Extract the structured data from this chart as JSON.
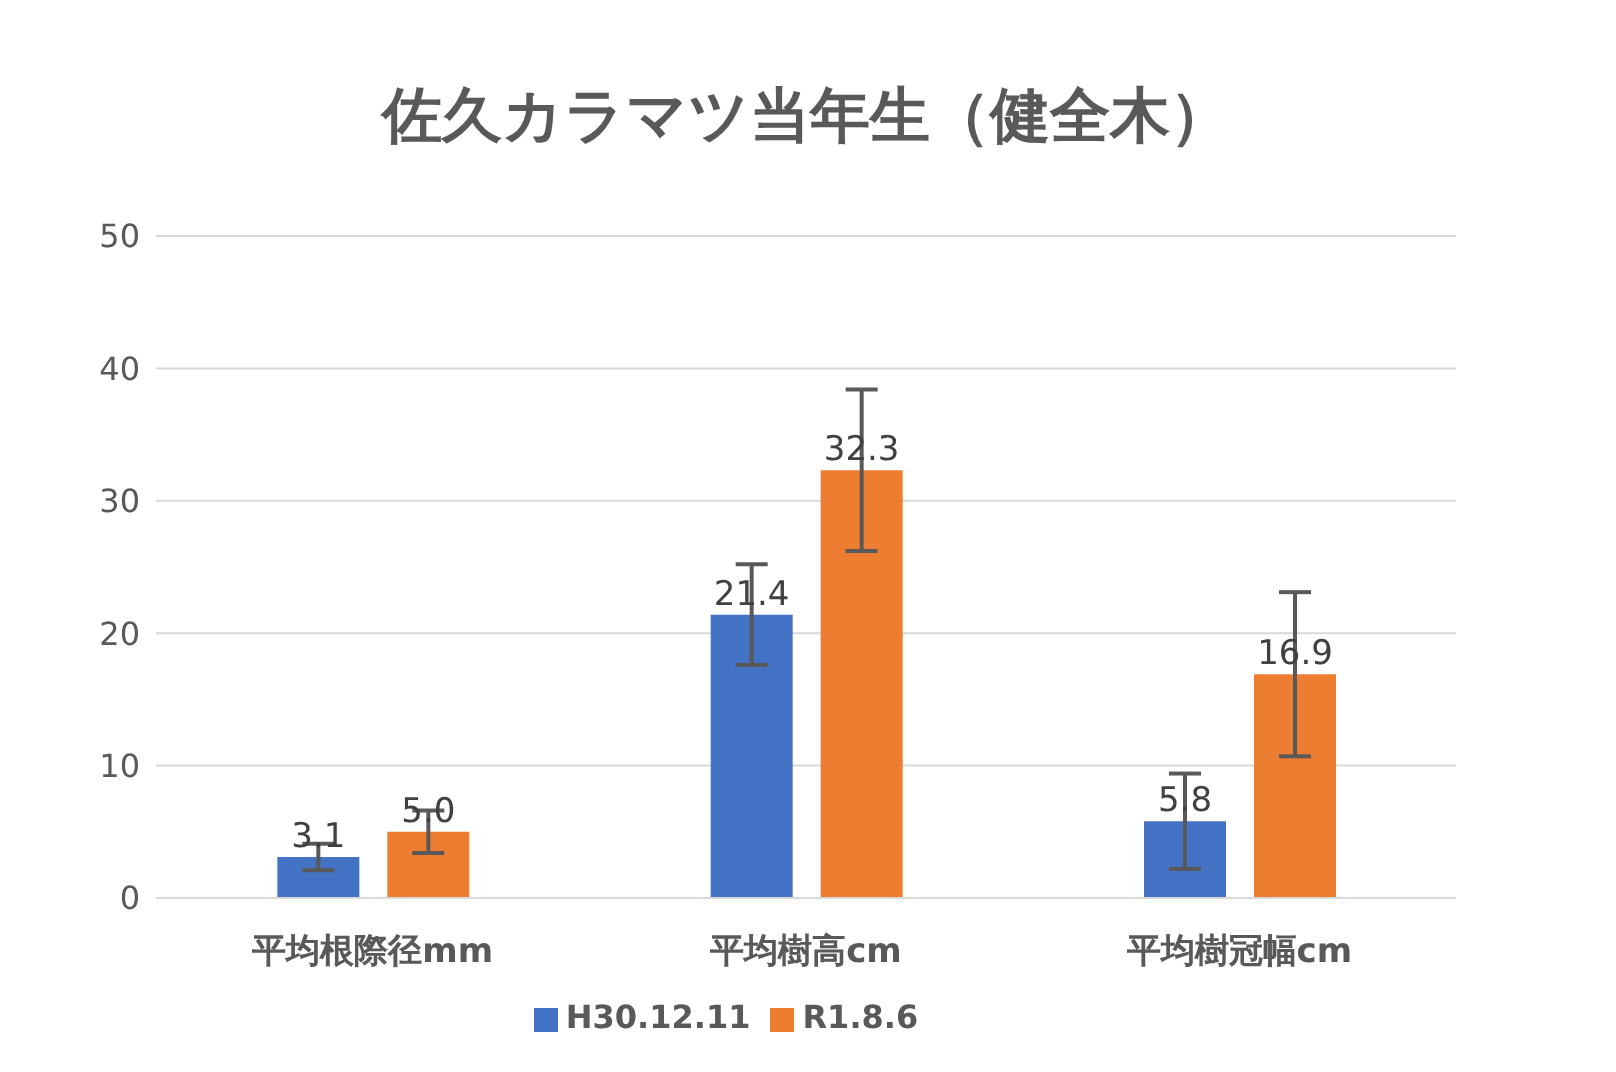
{
  "chart_data": {
    "type": "bar",
    "title": "佐久カラマツ当年生（健全木）",
    "categories": [
      "平均根際径mm",
      "平均樹高cm",
      "平均樹冠幅cm"
    ],
    "series": [
      {
        "name": "H30.12.11",
        "color": "#4472c4",
        "values": [
          3.1,
          21.4,
          5.8
        ],
        "value_labels": [
          "3.1",
          "21.4",
          "5.8"
        ],
        "errors": [
          1.0,
          3.8,
          3.6
        ]
      },
      {
        "name": "R1.8.6",
        "color": "#ed7d31",
        "values": [
          5.0,
          32.3,
          16.9
        ],
        "value_labels": [
          "5.0",
          "32.3",
          "16.9"
        ],
        "errors": [
          1.6,
          6.1,
          6.2
        ]
      }
    ],
    "ylim": [
      0,
      50
    ],
    "yticks": [
      0,
      10,
      20,
      30,
      40,
      50
    ],
    "grid": "y",
    "legend": "bottom"
  }
}
